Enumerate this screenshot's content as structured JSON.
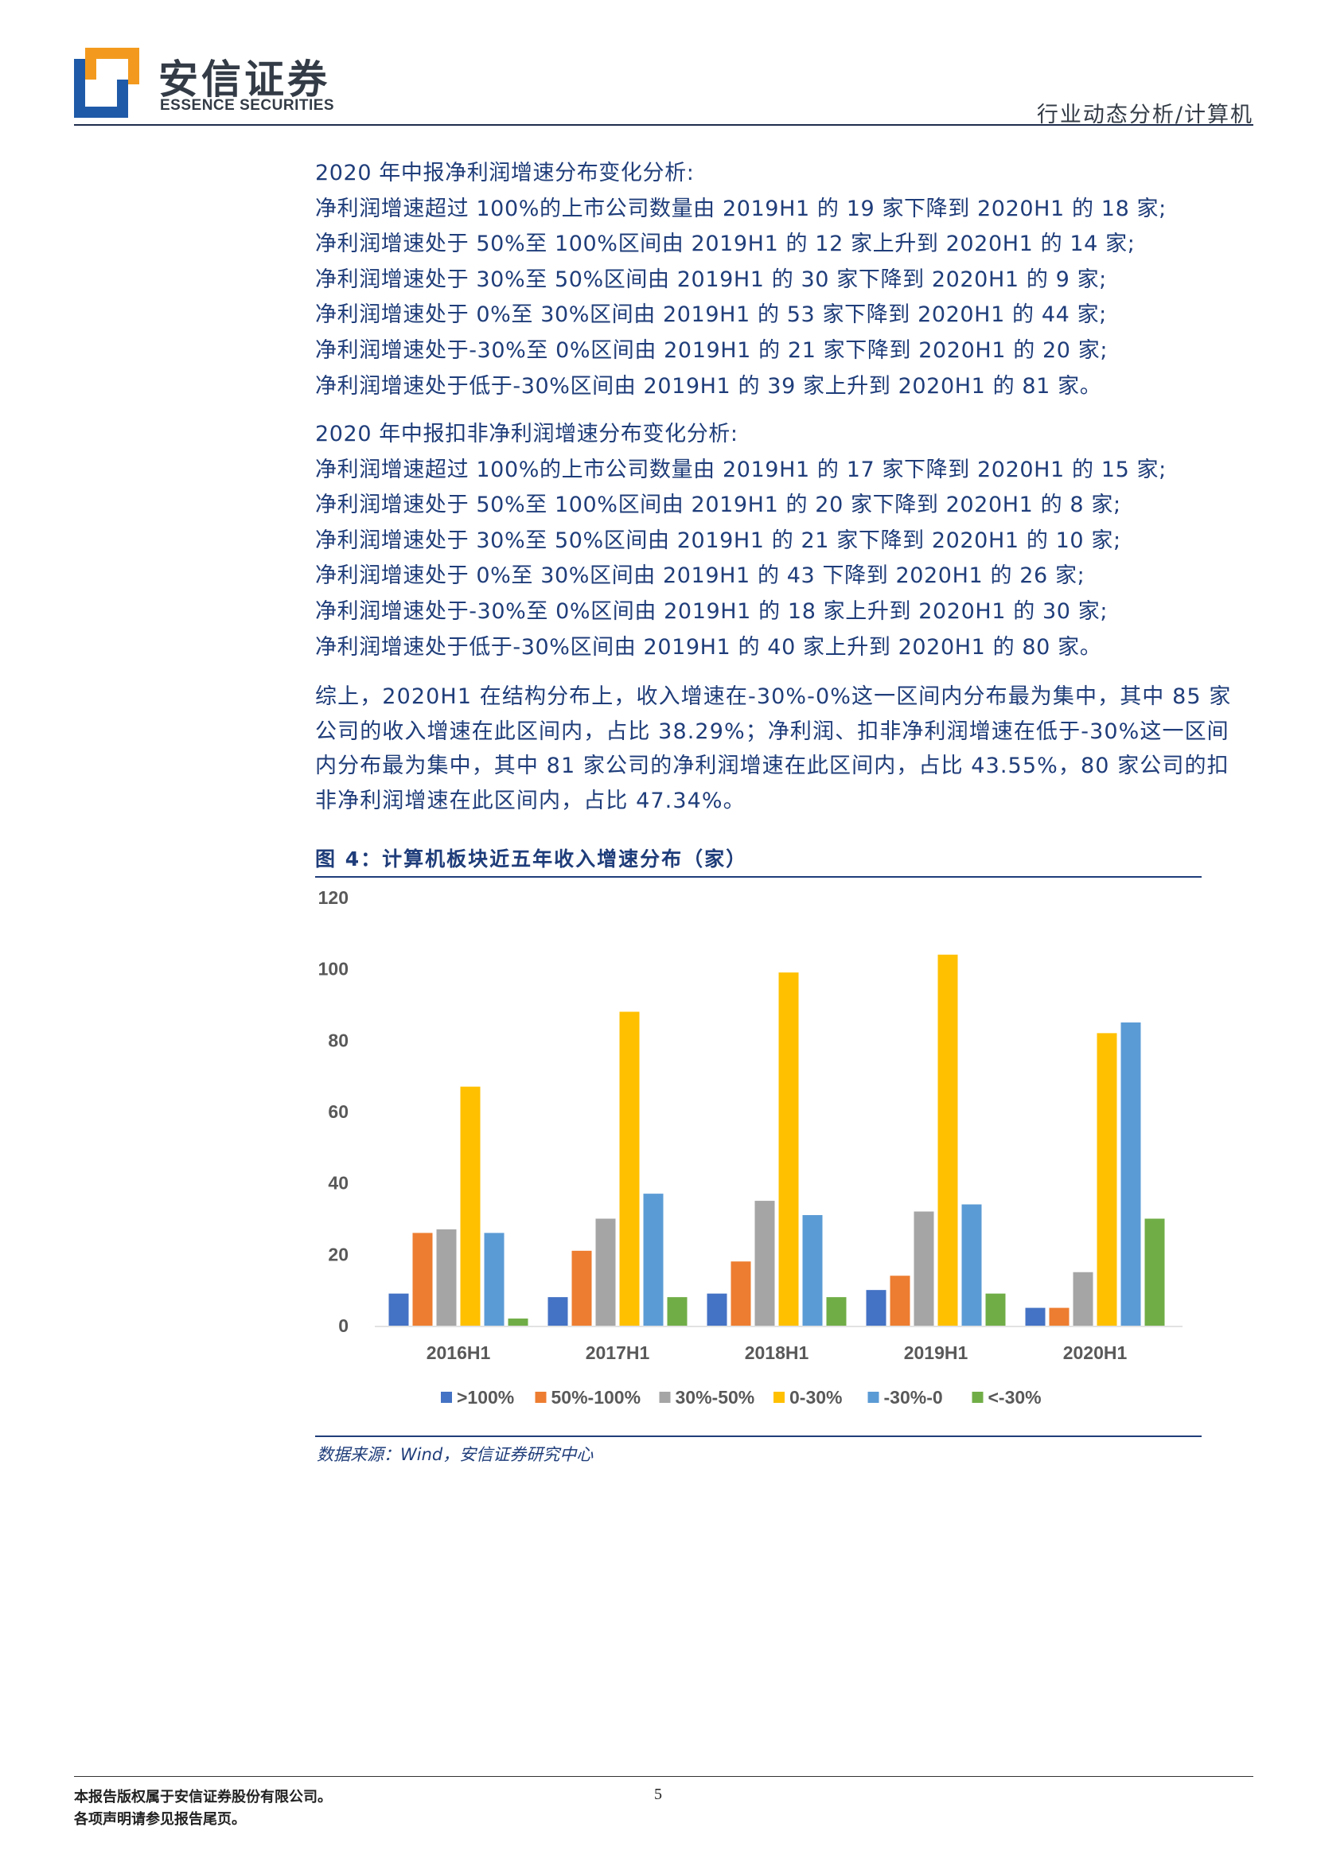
{
  "header": {
    "brand_cn": "安信证券",
    "brand_en": "ESSENCE SECURITIES",
    "section": "行业动态分析/计算机",
    "colors": {
      "logo_orange": "#f39a1e",
      "logo_blue": "#1f5aa8"
    }
  },
  "sections": [
    {
      "title": "2020 年中报净利润增速分布变化分析:",
      "lines": [
        "净利润增速超过 100%的上市公司数量由 2019H1 的 19 家下降到 2020H1 的 18 家;",
        "净利润增速处于 50%至 100%区间由 2019H1 的 12 家上升到 2020H1 的 14 家;",
        "净利润增速处于 30%至 50%区间由 2019H1 的 30 家下降到 2020H1 的 9 家;",
        "净利润增速处于 0%至 30%区间由 2019H1 的 53 家下降到 2020H1 的 44 家;",
        "净利润增速处于-30%至 0%区间由 2019H1 的 21 家下降到 2020H1 的 20 家;",
        "净利润增速处于低于-30%区间由 2019H1 的 39 家上升到 2020H1 的 81 家。"
      ]
    },
    {
      "title": "2020 年中报扣非净利润增速分布变化分析:",
      "lines": [
        "净利润增速超过 100%的上市公司数量由 2019H1 的 17 家下降到 2020H1 的 15 家;",
        "净利润增速处于 50%至 100%区间由 2019H1 的 20 家下降到 2020H1 的 8 家;",
        "净利润增速处于 30%至 50%区间由 2019H1 的 21 家下降到 2020H1 的 10 家;",
        "净利润增速处于 0%至 30%区间由 2019H1 的 43 下降到 2020H1 的 26 家;",
        "净利润增速处于-30%至 0%区间由 2019H1 的 18 家上升到 2020H1 的 30 家;",
        "净利润增速处于低于-30%区间由 2019H1 的 40 家上升到 2020H1 的 80 家。"
      ]
    }
  ],
  "summary": {
    "lines": [
      "综上，2020H1 在结构分布上，收入增速在-30%-0%这一区间内分布最为集中，其中 85 家",
      "公司的收入增速在此区间内，占比 38.29%；净利润、扣非净利润增速在低于-30%这一区间",
      "内分布最为集中，其中 81 家公司的净利润增速在此区间内，占比 43.55%，80 家公司的扣",
      "非净利润增速在此区间内，占比 47.34%。"
    ]
  },
  "figure": {
    "title": "图 4：计算机板块近五年收入增速分布（家）",
    "source": "数据来源：Wind，安信证券研究中心"
  },
  "chart_data": {
    "type": "bar",
    "title": "",
    "xlabel": "",
    "ylabel": "",
    "categories": [
      "2016H1",
      "2017H1",
      "2018H1",
      "2019H1",
      "2020H1"
    ],
    "ylim": [
      0,
      120
    ],
    "yticks": [
      0,
      20,
      40,
      60,
      80,
      100,
      120
    ],
    "grid": false,
    "legend": "bottom",
    "series": [
      {
        "name": ">100%",
        "color": "#4472c4",
        "values": [
          9,
          8,
          9,
          10,
          5
        ]
      },
      {
        "name": "50%-100%",
        "color": "#ed7d31",
        "values": [
          26,
          21,
          18,
          14,
          5
        ]
      },
      {
        "name": "30%-50%",
        "color": "#a5a5a5",
        "values": [
          27,
          30,
          35,
          32,
          15
        ]
      },
      {
        "name": "0-30%",
        "color": "#ffc000",
        "values": [
          67,
          88,
          99,
          104,
          82
        ]
      },
      {
        "name": "-30%-0",
        "color": "#5b9bd5",
        "values": [
          26,
          37,
          31,
          34,
          85
        ]
      },
      {
        "name": "<-30%",
        "color": "#70ad47",
        "values": [
          2,
          8,
          8,
          9,
          30
        ]
      }
    ]
  },
  "footer": {
    "line1": "本报告版权属于安信证券股份有限公司。",
    "line2": "各项声明请参见报告尾页。",
    "page": "5"
  }
}
